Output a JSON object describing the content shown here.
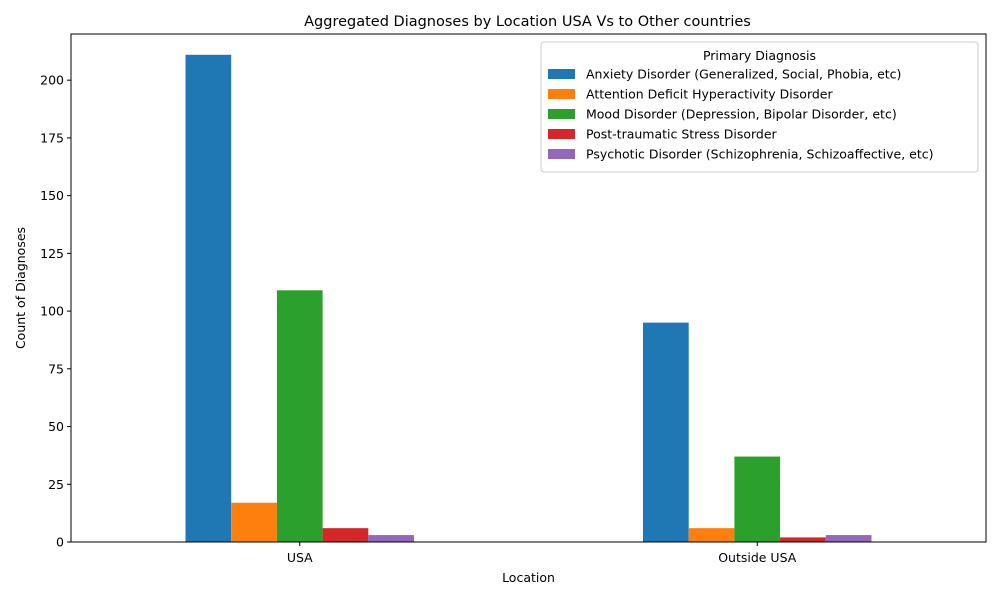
{
  "chart_data": {
    "type": "bar",
    "title": "Aggregated Diagnoses by Location USA Vs to Other countries",
    "xlabel": "Location",
    "ylabel": "Count of Diagnoses",
    "categories": [
      "USA",
      "Outside USA"
    ],
    "ylim": [
      0,
      220
    ],
    "yticks": [
      0,
      25,
      50,
      75,
      100,
      125,
      150,
      175,
      200
    ],
    "grid": false,
    "legend": {
      "title": "Primary Diagnosis",
      "placement": "top-right"
    },
    "series": [
      {
        "name": "Anxiety Disorder (Generalized, Social, Phobia, etc)",
        "color": "#1f77b4",
        "values": [
          211,
          95
        ]
      },
      {
        "name": "Attention Deficit Hyperactivity Disorder",
        "color": "#ff7f0e",
        "values": [
          17,
          6
        ]
      },
      {
        "name": "Mood Disorder (Depression, Bipolar Disorder, etc)",
        "color": "#2ca02c",
        "values": [
          109,
          37
        ]
      },
      {
        "name": "Post-traumatic Stress Disorder",
        "color": "#d62728",
        "values": [
          6,
          2
        ]
      },
      {
        "name": "Psychotic Disorder (Schizophrenia, Schizoaffective, etc)",
        "color": "#9467bd",
        "values": [
          3,
          3
        ]
      }
    ]
  }
}
